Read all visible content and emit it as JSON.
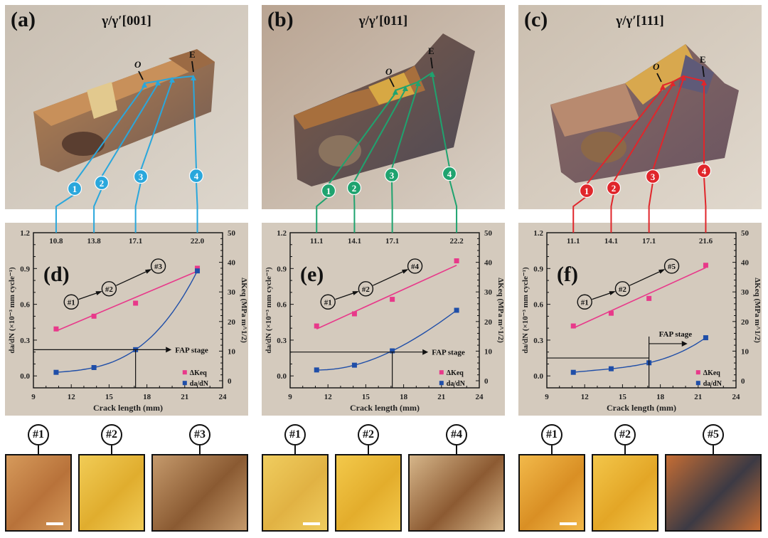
{
  "photos": [
    {
      "label": "(a)",
      "title": "γ/γ′[001]",
      "origin": "O",
      "end": "E",
      "markers": [
        "1",
        "2",
        "3",
        "4"
      ],
      "color": "#2aa7dc"
    },
    {
      "label": "(b)",
      "title": "γ/γ′[011]",
      "origin": "O",
      "end": "E",
      "markers": [
        "1",
        "2",
        "3",
        "4"
      ],
      "color": "#1fa36f"
    },
    {
      "label": "(c)",
      "title": "γ/γ′[111]",
      "origin": "O",
      "end": "E",
      "markers": [
        "1",
        "2",
        "3",
        "4"
      ],
      "color": "#e0262b"
    }
  ],
  "chart_data": [
    {
      "type": "line",
      "panel_label": "(d)",
      "xlabel": "Crack length (mm)",
      "ylabel": "da/dN (×10⁻³ mm cycle⁻¹)",
      "y2label": "ΔKeq (MPa m^1/2)",
      "xlim": [
        9,
        24
      ],
      "ylim": [
        -0.1,
        1.2
      ],
      "y2lim": [
        -2.4,
        50
      ],
      "xticks": [
        "9",
        "12",
        "15",
        "18",
        "21",
        "24"
      ],
      "yticks": [
        "0.0",
        "0.3",
        "0.6",
        "0.9",
        "1.2"
      ],
      "y2ticks": [
        "0",
        "10",
        "20",
        "30",
        "40",
        "50"
      ],
      "top_labels": [
        "10.8",
        "13.8",
        "17.1",
        "22.0"
      ],
      "x": [
        10.8,
        13.8,
        17.1,
        22.0
      ],
      "series": [
        {
          "name": "ΔKeq",
          "axis": "right",
          "color": "#e8398a",
          "values": [
            17.5,
            21.8,
            26.2,
            38.0
          ],
          "fit": [
            16.8,
            37.0
          ]
        },
        {
          "name": "da/dN",
          "axis": "left",
          "color": "#1f4ea8",
          "values": [
            0.03,
            0.07,
            0.22,
            0.88
          ]
        }
      ],
      "fap": {
        "label": "FAP stage",
        "x": 17.1,
        "y": 0.22
      },
      "stages": [
        "#1",
        "#2",
        "#3"
      ],
      "legend": {
        "position": "bottom-right",
        "entries": [
          "ΔKeq",
          "da/dN"
        ]
      }
    },
    {
      "type": "line",
      "panel_label": "(e)",
      "xlabel": "Crack length (mm)",
      "ylabel": "da/dN (×10⁻³ mm cycle⁻¹)",
      "y2label": "ΔKeq (MPa m^1/2)",
      "xlim": [
        9,
        24
      ],
      "ylim": [
        -0.1,
        1.2
      ],
      "y2lim": [
        -2.4,
        50
      ],
      "xticks": [
        "9",
        "12",
        "15",
        "18",
        "21",
        "24"
      ],
      "yticks": [
        "0.0",
        "0.3",
        "0.6",
        "0.9",
        "1.2"
      ],
      "y2ticks": [
        "0",
        "10",
        "20",
        "30",
        "40",
        "50"
      ],
      "top_labels": [
        "11.1",
        "14.1",
        "17.1",
        "22.2"
      ],
      "x": [
        11.1,
        14.1,
        17.1,
        22.2
      ],
      "series": [
        {
          "name": "ΔKeq",
          "axis": "right",
          "color": "#e8398a",
          "values": [
            18.5,
            22.6,
            27.5,
            40.5
          ],
          "fit": [
            17.5,
            39.0
          ]
        },
        {
          "name": "da/dN",
          "axis": "left",
          "color": "#1f4ea8",
          "values": [
            0.05,
            0.09,
            0.21,
            0.55
          ]
        }
      ],
      "fap": {
        "label": "FAP stage",
        "x": 17.1,
        "y": 0.2
      },
      "stages": [
        "#1",
        "#2",
        "#4"
      ],
      "legend": {
        "position": "bottom-right",
        "entries": [
          "ΔKeq",
          "da/dN"
        ]
      }
    },
    {
      "type": "line",
      "panel_label": "(f)",
      "xlabel": "Crack length (mm)",
      "ylabel": "da/dN (×10⁻³ mm cycle⁻¹)",
      "y2label": "ΔKeq (MPa m^1/2)",
      "xlim": [
        9,
        24
      ],
      "ylim": [
        -0.1,
        1.2
      ],
      "y2lim": [
        -2.4,
        50
      ],
      "xticks": [
        "9",
        "12",
        "15",
        "18",
        "21",
        "24"
      ],
      "yticks": [
        "0.0",
        "0.3",
        "0.6",
        "0.9",
        "1.2"
      ],
      "y2ticks": [
        "0",
        "10",
        "20",
        "30",
        "40",
        "50"
      ],
      "top_labels": [
        "11.1",
        "14.1",
        "17.1",
        "21.6"
      ],
      "x": [
        11.1,
        14.1,
        17.1,
        21.6
      ],
      "series": [
        {
          "name": "ΔKeq",
          "axis": "right",
          "color": "#e8398a",
          "values": [
            18.5,
            22.8,
            27.8,
            39.0
          ],
          "fit": [
            17.8,
            38.2
          ]
        },
        {
          "name": "da/dN",
          "axis": "left",
          "color": "#1f4ea8",
          "values": [
            0.03,
            0.06,
            0.11,
            0.32
          ]
        }
      ],
      "fap": {
        "label": "FAP stage",
        "x": 17.1,
        "y": 0.15
      },
      "stages": [
        "#1",
        "#2",
        "#5"
      ],
      "legend": {
        "position": "bottom-right",
        "entries": [
          "ΔKeq",
          "da/dN"
        ]
      }
    }
  ],
  "micrographs": [
    {
      "label": "#1",
      "tone": "#b8723a",
      "tone2": "#d69a5b",
      "scalebar": true
    },
    {
      "label": "#2",
      "tone": "#e0ad2e",
      "tone2": "#f1cc56",
      "scalebar": false
    },
    {
      "label": "#3",
      "tone": "#8a5a32",
      "tone2": "#c59a6c",
      "scalebar": false
    },
    {
      "label": "#1",
      "tone": "#e1b243",
      "tone2": "#f0cd5f",
      "scalebar": true
    },
    {
      "label": "#2",
      "tone": "#e3ad2c",
      "tone2": "#f3c94b",
      "scalebar": false
    },
    {
      "label": "#4",
      "tone": "#8c5a32",
      "tone2": "#d6b68a",
      "scalebar": false
    },
    {
      "label": "#1",
      "tone": "#d98f24",
      "tone2": "#f2b94a",
      "scalebar": true
    },
    {
      "label": "#2",
      "tone": "#e3a626",
      "tone2": "#f3c64a",
      "scalebar": false
    },
    {
      "label": "#5",
      "tone": "#3c3a44",
      "tone2": "#c56d34",
      "scalebar": false
    }
  ]
}
